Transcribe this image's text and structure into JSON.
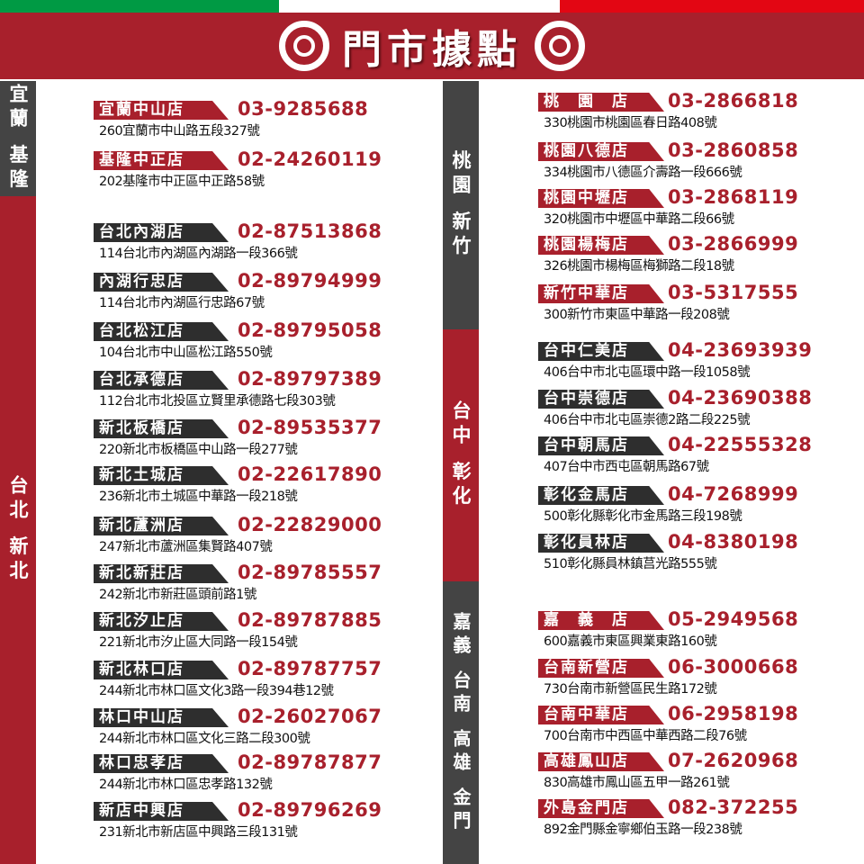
{
  "title": "門市據點",
  "colors": {
    "brand_red": "#a8202c",
    "dark_gray": "#444444",
    "flag_green": "#009a44",
    "flag_red": "#e30613"
  },
  "regions": [
    {
      "name": "宜蘭 基隆",
      "color": "dark"
    },
    {
      "name": "台北 新北",
      "color": "red"
    },
    {
      "name": "桃園 新竹",
      "color": "dark"
    },
    {
      "name": "台中 彰化",
      "color": "red"
    },
    {
      "name": "嘉義 台南 高雄 金門",
      "color": "dark"
    }
  ],
  "left_stores": [
    {
      "name": "宜蘭中山店",
      "phone": "03-9285688",
      "address": "260宜蘭市中山路五段327號",
      "color": "red"
    },
    {
      "name": "基隆中正店",
      "phone": "02-24260119",
      "address": "202基隆市中正區中正路58號",
      "color": "red"
    },
    {
      "name": "台北內湖店",
      "phone": "02-87513868",
      "address": "114台北市內湖區內湖路一段366號",
      "color": "dark"
    },
    {
      "name": "內湖行忠店",
      "phone": "02-89794999",
      "address": "114台北市內湖區行忠路67號",
      "color": "dark"
    },
    {
      "name": "台北松江店",
      "phone": "02-89795058",
      "address": "104台北市中山區松江路550號",
      "color": "dark"
    },
    {
      "name": "台北承德店",
      "phone": "02-89797389",
      "address": "112台北市北投區立賢里承德路七段303號",
      "color": "dark"
    },
    {
      "name": "新北板橋店",
      "phone": "02-89535377",
      "address": "220新北市板橋區中山路一段277號",
      "color": "dark"
    },
    {
      "name": "新北土城店",
      "phone": "02-22617890",
      "address": "236新北市土城區中華路一段218號",
      "color": "dark"
    },
    {
      "name": "新北蘆洲店",
      "phone": "02-22829000",
      "address": "247新北市蘆洲區集賢路407號",
      "color": "dark"
    },
    {
      "name": "新北新莊店",
      "phone": "02-89785557",
      "address": "242新北市新莊區頭前路1號",
      "color": "dark"
    },
    {
      "name": "新北汐止店",
      "phone": "02-89787885",
      "address": "221新北市汐止區大同路一段154號",
      "color": "dark"
    },
    {
      "name": "新北林口店",
      "phone": "02-89787757",
      "address": "244新北市林口區文化3路一段394巷12號",
      "color": "dark"
    },
    {
      "name": "林口中山店",
      "phone": "02-26027067",
      "address": "244新北市林口區文化三路二段300號",
      "color": "dark"
    },
    {
      "name": "林口忠孝店",
      "phone": "02-89787877",
      "address": "244新北市林口區忠孝路132號",
      "color": "dark"
    },
    {
      "name": "新店中興店",
      "phone": "02-89796269",
      "address": "231新北市新店區中興路三段131號",
      "color": "dark"
    }
  ],
  "right_stores": [
    {
      "name": "桃　園　店",
      "phone": "03-2866818",
      "address": "330桃園市桃園區春日路408號",
      "color": "red"
    },
    {
      "name": "桃園八德店",
      "phone": "03-2860858",
      "address": "334桃園市八德區介壽路一段666號",
      "color": "red"
    },
    {
      "name": "桃園中壢店",
      "phone": "03-2868119",
      "address": "320桃園市中壢區中華路二段66號",
      "color": "red"
    },
    {
      "name": "桃園楊梅店",
      "phone": "03-2866999",
      "address": "326桃園市楊梅區梅獅路二段18號",
      "color": "red"
    },
    {
      "name": "新竹中華店",
      "phone": "03-5317555",
      "address": "300新竹市東區中華路一段208號",
      "color": "red"
    },
    {
      "name": "台中仁美店",
      "phone": "04-23693939",
      "address": "406台中市北屯區環中路一段1058號",
      "color": "dark"
    },
    {
      "name": "台中崇德店",
      "phone": "04-23690388",
      "address": "406台中市北屯區崇德2路二段225號",
      "color": "dark"
    },
    {
      "name": "台中朝馬店",
      "phone": "04-22555328",
      "address": "407台中市西屯區朝馬路67號",
      "color": "dark"
    },
    {
      "name": "彰化金馬店",
      "phone": "04-7268999",
      "address": "500彰化縣彰化市金馬路三段198號",
      "color": "dark"
    },
    {
      "name": "彰化員林店",
      "phone": "04-8380198",
      "address": "510彰化縣員林鎮莒光路555號",
      "color": "dark"
    },
    {
      "name": "嘉　義　店",
      "phone": "05-2949568",
      "address": "600嘉義市東區興業東路160號",
      "color": "red"
    },
    {
      "name": "台南新營店",
      "phone": "06-3000668",
      "address": "730台南市新營區民生路172號",
      "color": "red"
    },
    {
      "name": "台南中華店",
      "phone": "06-2958198",
      "address": "700台南市中西區中華西路二段76號",
      "color": "red"
    },
    {
      "name": "高雄鳳山店",
      "phone": "07-2620968",
      "address": "830高雄市鳳山區五甲一路261號",
      "color": "red"
    },
    {
      "name": "外島金門店",
      "phone": "082-372255",
      "address": "892金門縣金寧鄉伯玉路一段238號",
      "color": "red"
    }
  ]
}
